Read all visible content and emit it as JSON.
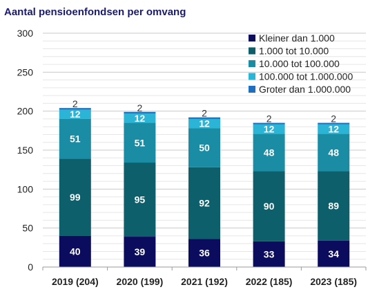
{
  "chart_data": {
    "type": "bar",
    "stacked": true,
    "title": "Aantal pensioenfondsen per omvang",
    "xlabel": "",
    "ylabel": "",
    "ylim": [
      0,
      300
    ],
    "yticks": [
      "0",
      "50",
      "100",
      "150",
      "200",
      "250",
      "300"
    ],
    "grid": true,
    "legend_position": "top-right",
    "categories": [
      "2019 (204)",
      "2020 (199)",
      "2021 (192)",
      "2022 (185)",
      "2023 (185)"
    ],
    "series": [
      {
        "name": "Kleiner dan 1.000",
        "color": "#0c0c5e",
        "values": [
          40,
          39,
          36,
          33,
          34
        ]
      },
      {
        "name": "1.000 tot 10.000",
        "color": "#0d5f6b",
        "values": [
          99,
          95,
          92,
          90,
          89
        ]
      },
      {
        "name": "10.000 tot 100.000",
        "color": "#1a8ca3",
        "values": [
          51,
          51,
          50,
          48,
          48
        ]
      },
      {
        "name": "100.000 tot 1.000.000",
        "color": "#2cb4d6",
        "values": [
          12,
          12,
          12,
          12,
          12
        ]
      },
      {
        "name": "Groter dan 1.000.000",
        "color": "#1f6fc0",
        "values": [
          2,
          2,
          2,
          2,
          2
        ]
      }
    ]
  }
}
